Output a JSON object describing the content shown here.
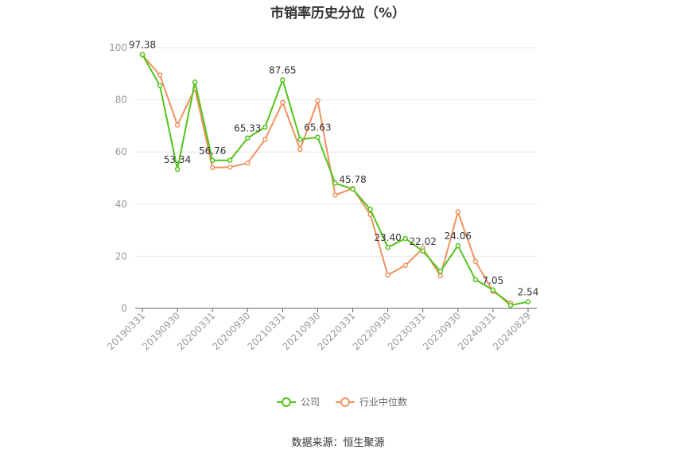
{
  "chart_data": {
    "type": "line",
    "title": "市销率历史分位（%）",
    "xlabel": "",
    "ylabel": "",
    "ylim": [
      0,
      100
    ],
    "yticks": [
      0,
      20,
      40,
      60,
      80,
      100
    ],
    "x": [
      "20190331",
      "20190630",
      "20190930",
      "20191231",
      "20200331",
      "20200630",
      "20200930",
      "20201231",
      "20210331",
      "20210630",
      "20210930",
      "20211231",
      "20220331",
      "20220630",
      "20220930",
      "20221231",
      "20230331",
      "20230630",
      "20230930",
      "20231231",
      "20240331",
      "20240630",
      "20240829"
    ],
    "x_tick_labels": [
      "20190331",
      "20190930",
      "20200331",
      "20200930",
      "20210331",
      "20210930",
      "20220331",
      "20220930",
      "20230331",
      "20230930",
      "20240331",
      "20240829"
    ],
    "series": [
      {
        "name": "公司",
        "color": "#52c41a",
        "values": [
          97.38,
          85.5,
          53.34,
          86.8,
          56.76,
          56.8,
          65.33,
          69.5,
          87.65,
          64.8,
          65.63,
          48.0,
          45.78,
          38.0,
          23.4,
          26.8,
          22.02,
          14.2,
          24.06,
          11.0,
          7.05,
          1.2,
          2.54
        ],
        "labels": {
          "0": "97.38",
          "2": "53.34",
          "4": "56.76",
          "6": "65.33",
          "8": "87.65",
          "10": "65.63",
          "12": "45.78",
          "14": "23.40",
          "16": "22.02",
          "18": "24.06",
          "20": "7.05",
          "22": "2.54"
        }
      },
      {
        "name": "行业中位数",
        "color": "#f4915e",
        "values": [
          97.2,
          89.5,
          70.3,
          84.3,
          54.0,
          54.2,
          55.7,
          64.8,
          79.0,
          61.0,
          79.7,
          43.5,
          46.0,
          36.0,
          12.8,
          16.5,
          23.0,
          12.5,
          37.0,
          18.0,
          6.5,
          2.0,
          null
        ]
      }
    ],
    "grid": true,
    "legend_position": "bottom-center",
    "source": "数据来源：恒生聚源"
  }
}
